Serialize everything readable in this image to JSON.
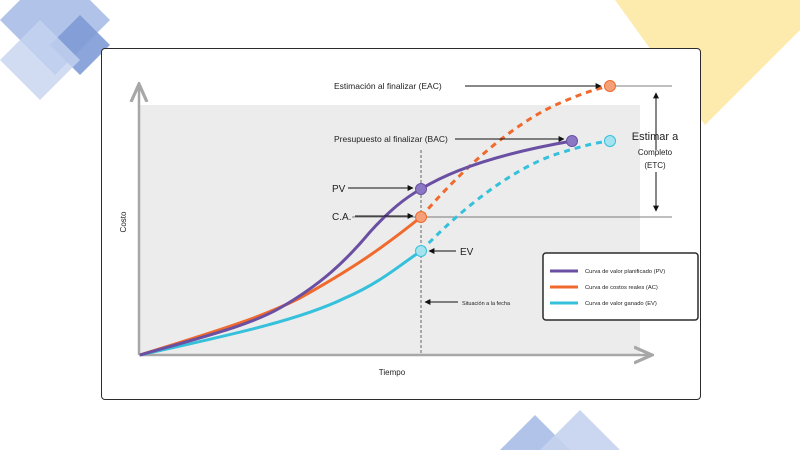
{
  "colors": {
    "pv": "#6a4fa3",
    "ac": "#ef6a2c",
    "ev": "#35c0db",
    "deco_blue": "#8fa8dc",
    "deco_yellow": "#fde9a6",
    "plot_bg": "#ebebeb",
    "axis": "#a7a7a7"
  },
  "axes": {
    "x_label": "Tiempo",
    "y_label": "Costo"
  },
  "labels": {
    "eac": "Estimación al finalizar (EAC)",
    "bac": "Presupuesto al finalizar (BAC)",
    "pv": "PV",
    "ac": "C.A.",
    "ev": "EV",
    "status_date": "Situación a la fecha",
    "etc_line1": "Estimar a",
    "etc_line2": "Completo",
    "etc_line3": "(ETC)"
  },
  "legend": {
    "items": [
      {
        "key": "pv",
        "label": "Curva de valor planificado (PV)"
      },
      {
        "key": "ac",
        "label": "Curva de costos reales (AC)"
      },
      {
        "key": "ev",
        "label": "Curva de valor ganado (EV)"
      }
    ]
  }
}
